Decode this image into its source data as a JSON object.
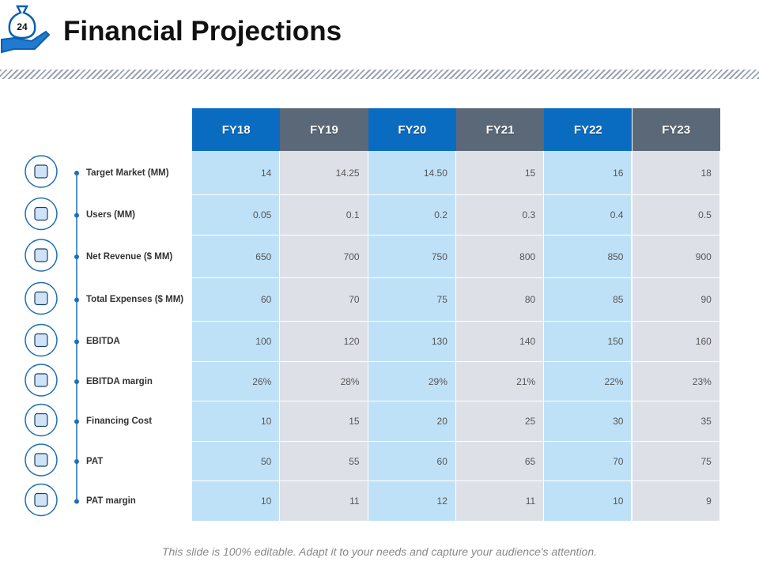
{
  "header": {
    "page_number": "24",
    "title": "Financial Projections"
  },
  "table": {
    "columns": [
      "FY18",
      "FY19",
      "FY20",
      "FY21",
      "FY22",
      "FY23"
    ],
    "rows": [
      {
        "label": "Target Market (MM)",
        "cells": [
          "14",
          "14.25",
          "14.50",
          "15",
          "16",
          "18"
        ]
      },
      {
        "label": "Users (MM)",
        "cells": [
          "0.05",
          "0.1",
          "0.2",
          "0.3",
          "0.4",
          "0.5"
        ]
      },
      {
        "label": "Net Revenue ($ MM)",
        "cells": [
          "650",
          "700",
          "750",
          "800",
          "850",
          "900"
        ]
      },
      {
        "label": "Total Expenses ($ MM)",
        "cells": [
          "60",
          "70",
          "75",
          "80",
          "85",
          "90"
        ]
      },
      {
        "label": "EBITDA",
        "cells": [
          "100",
          "120",
          "130",
          "140",
          "150",
          "160"
        ]
      },
      {
        "label": "EBITDA margin",
        "cells": [
          "26%",
          "28%",
          "29%",
          "21%",
          "22%",
          "23%"
        ]
      },
      {
        "label": "Financing Cost",
        "cells": [
          "10",
          "15",
          "20",
          "25",
          "30",
          "35"
        ]
      },
      {
        "label": "PAT",
        "cells": [
          "50",
          "55",
          "60",
          "65",
          "70",
          "75"
        ]
      },
      {
        "label": "PAT margin",
        "cells": [
          "10",
          "11",
          "12",
          "11",
          "10",
          "9"
        ]
      }
    ]
  },
  "footer": "This slide is 100% editable. Adapt it to your needs and capture your audience's attention."
}
